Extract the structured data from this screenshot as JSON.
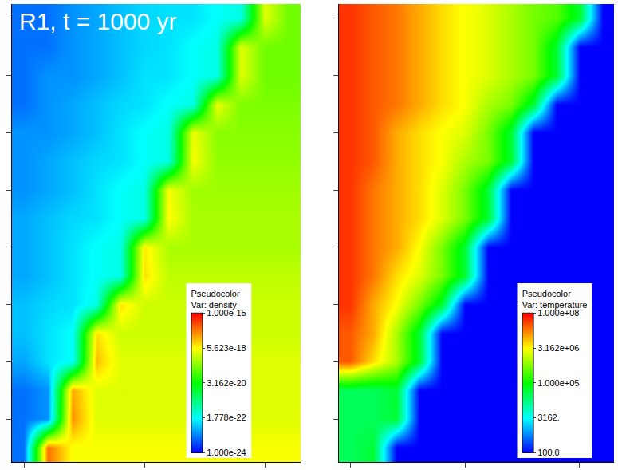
{
  "chart_data": [
    {
      "type": "heatmap",
      "title": "R1, t = 1000 yr",
      "tick_labels": false,
      "colors": [
        "#0000ff",
        "#00ffff",
        "#00ff00",
        "#ffff00",
        "#ff0000"
      ],
      "colorbar": {
        "title": [
          "Pseudocolor",
          "Var: density"
        ],
        "log": true,
        "range": [
          1e-24,
          1e-15
        ],
        "ticks": [
          {
            "value": 1e-15,
            "label": "1.000e-15"
          },
          {
            "value": 5.623e-18,
            "label": "5.623e-18"
          },
          {
            "value": 3.162e-20,
            "label": "3.162e-20"
          },
          {
            "value": 1.778e-22,
            "label": "1.778e-22"
          },
          {
            "value": 1e-24,
            "label": "1.000e-24"
          }
        ]
      },
      "cells": [
        [
          1e-23,
          1e-23,
          2e-23,
          3e-23,
          5e-23,
          8e-23,
          1e-22,
          1e-22,
          2e-22,
          3e-22,
          3e-18,
          3e-19
        ],
        [
          1e-23,
          1e-23,
          2e-23,
          3e-23,
          5e-23,
          8e-23,
          1e-22,
          2e-22,
          3e-22,
          3e-18,
          3e-19,
          3e-19
        ],
        [
          1e-23,
          2e-23,
          2e-23,
          3e-23,
          5e-23,
          1e-22,
          1e-22,
          2e-22,
          3e-22,
          3e-18,
          3e-19,
          3e-19
        ],
        [
          1e-23,
          2e-23,
          3e-23,
          5e-23,
          8e-23,
          1e-22,
          2e-22,
          3e-22,
          4e-18,
          4e-19,
          4e-19,
          4e-19
        ],
        [
          2e-23,
          2e-23,
          3e-23,
          5e-23,
          1e-22,
          2e-22,
          3e-22,
          4e-18,
          5e-19,
          5e-19,
          5e-19,
          5e-19
        ],
        [
          2e-23,
          3e-23,
          5e-23,
          8e-23,
          1e-22,
          2e-22,
          3e-22,
          5e-18,
          6e-19,
          6e-19,
          6e-19,
          6e-19
        ],
        [
          2e-23,
          3e-23,
          5e-23,
          1e-22,
          2e-22,
          3e-22,
          5e-18,
          8e-19,
          8e-19,
          8e-19,
          8e-19,
          8e-19
        ],
        [
          3e-23,
          5e-23,
          8e-23,
          1e-22,
          2e-22,
          3e-22,
          6e-18,
          1e-18,
          1e-18,
          1e-18,
          1e-18,
          1e-18
        ],
        [
          3e-23,
          5e-23,
          1e-22,
          2e-22,
          3e-22,
          8e-18,
          1e-18,
          1e-18,
          1e-18,
          1e-18,
          1e-18,
          1e-18
        ],
        [
          3e-23,
          5e-23,
          1e-22,
          2e-22,
          3e-22,
          1e-17,
          1.5e-18,
          1.5e-18,
          1.5e-18,
          1.5e-18,
          1.5e-18,
          1.5e-18
        ],
        [
          5e-23,
          8e-23,
          1e-22,
          3e-22,
          1e-17,
          2e-18,
          2e-18,
          2e-18,
          2e-18,
          2e-18,
          2e-18,
          2e-18
        ],
        [
          5e-23,
          1e-22,
          2e-22,
          1e-17,
          2e-18,
          2e-18,
          2e-18,
          2e-18,
          2e-18,
          2e-18,
          2e-18,
          2e-18
        ],
        [
          3e-23,
          1e-22,
          2e-22,
          2e-17,
          3e-18,
          3e-18,
          3e-18,
          3e-18,
          3e-18,
          3e-18,
          3e-18,
          3e-18
        ],
        [
          1e-23,
          2e-23,
          3e-17,
          3e-18,
          3e-18,
          3e-18,
          3e-18,
          3e-18,
          3e-18,
          3e-18,
          3e-18,
          3e-18
        ],
        [
          1e-23,
          2e-23,
          5e-17,
          3e-18,
          3e-18,
          3e-18,
          3e-18,
          3e-18,
          3e-18,
          3e-18,
          3e-18,
          3e-18
        ],
        [
          1e-23,
          1e-16,
          5e-18,
          5e-18,
          5e-18,
          5e-18,
          5e-18,
          5e-18,
          5e-18,
          5e-18,
          5e-18,
          5e-18
        ]
      ]
    },
    {
      "type": "heatmap",
      "tick_labels": false,
      "colors": [
        "#0000ff",
        "#00ffff",
        "#00ff00",
        "#ffff00",
        "#ff0000"
      ],
      "colorbar": {
        "title": [
          "Pseudocolor",
          "Var: temperature"
        ],
        "log": true,
        "range": [
          100,
          100000000.0
        ],
        "ticks": [
          {
            "value": 100000000.0,
            "label": "1.000e+08"
          },
          {
            "value": 3162000.0,
            "label": "3.162e+06"
          },
          {
            "value": 100000.0,
            "label": "1.000e+05"
          },
          {
            "value": 3162,
            "label": "3162."
          },
          {
            "value": 100,
            "label": "100.0"
          }
        ]
      },
      "cells": [
        [
          50000000.0,
          30000000.0,
          20000000.0,
          10000000.0,
          5000000.0,
          3000000.0,
          2000000.0,
          1000000.0,
          500000.0,
          300000.0,
          50000.0,
          100
        ],
        [
          50000000.0,
          30000000.0,
          20000000.0,
          10000000.0,
          5000000.0,
          3000000.0,
          2000000.0,
          1000000.0,
          500000.0,
          50000.0,
          100,
          100
        ],
        [
          50000000.0,
          30000000.0,
          20000000.0,
          10000000.0,
          5000000.0,
          3000000.0,
          2000000.0,
          1000000.0,
          500000.0,
          50000.0,
          100,
          100
        ],
        [
          50000000.0,
          30000000.0,
          20000000.0,
          10000000.0,
          5000000.0,
          3000000.0,
          1000000.0,
          500000.0,
          50000.0,
          100,
          100,
          100
        ],
        [
          50000000.0,
          30000000.0,
          10000000.0,
          5000000.0,
          3000000.0,
          2000000.0,
          500000.0,
          50000.0,
          100,
          100,
          100,
          100
        ],
        [
          50000000.0,
          30000000.0,
          10000000.0,
          5000000.0,
          3000000.0,
          1000000.0,
          500000.0,
          50000.0,
          100,
          100,
          100,
          100
        ],
        [
          50000000.0,
          20000000.0,
          10000000.0,
          5000000.0,
          2000000.0,
          500000.0,
          50000.0,
          100,
          100,
          100,
          100,
          100
        ],
        [
          50000000.0,
          20000000.0,
          10000000.0,
          5000000.0,
          2000000.0,
          500000.0,
          50000.0,
          100,
          100,
          100,
          100,
          100
        ],
        [
          50000000.0,
          20000000.0,
          10000000.0,
          3000000.0,
          500000.0,
          50000.0,
          100,
          100,
          100,
          100,
          100,
          100
        ],
        [
          50000000.0,
          20000000.0,
          5000000.0,
          2000000.0,
          500000.0,
          50000.0,
          100,
          100,
          100,
          100,
          100,
          100
        ],
        [
          50000000.0,
          10000000.0,
          3000000.0,
          500000.0,
          50000.0,
          100,
          100,
          100,
          100,
          100,
          100,
          100
        ],
        [
          30000000.0,
          10000000.0,
          1000000.0,
          50000.0,
          100,
          100,
          100,
          100,
          100,
          100,
          100,
          100
        ],
        [
          30000000.0,
          5000000.0,
          1000000.0,
          50000.0,
          100,
          100,
          100,
          100,
          100,
          100,
          100,
          100
        ],
        [
          30000.0,
          30000.0,
          50000.0,
          100,
          100,
          100,
          100,
          100,
          100,
          100,
          100,
          100
        ],
        [
          30000.0,
          30000.0,
          50000.0,
          100,
          100,
          100,
          100,
          100,
          100,
          100,
          100,
          100
        ],
        [
          30000.0,
          50000.0,
          100,
          100,
          100,
          100,
          100,
          100,
          100,
          100,
          100,
          100
        ]
      ]
    }
  ]
}
